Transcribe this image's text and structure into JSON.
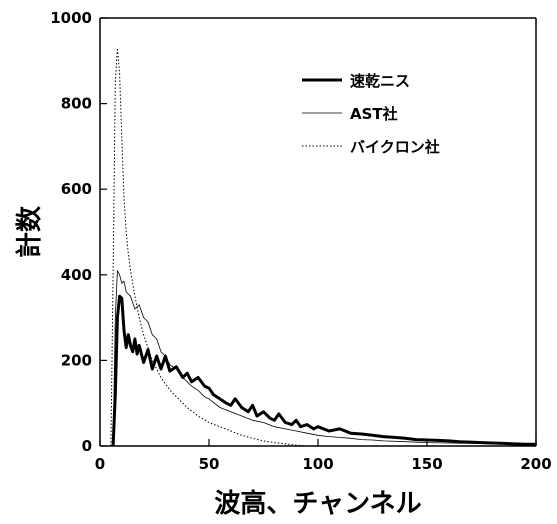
{
  "chart_data": {
    "type": "line",
    "title": "",
    "xlabel": "波高、チャンネル",
    "ylabel": "計数",
    "xlim": [
      0,
      200
    ],
    "ylim": [
      0,
      1000
    ],
    "xticks": [
      0,
      50,
      100,
      150,
      200
    ],
    "yticks": [
      0,
      200,
      400,
      600,
      800,
      1000
    ],
    "legend": "top-right",
    "grid": false,
    "series": [
      {
        "name": "速乾ニス",
        "style": "thick-solid",
        "color": "#000000",
        "x": [
          6,
          7,
          8,
          9,
          10,
          11,
          12,
          13,
          14,
          15,
          16,
          17,
          18,
          20,
          22,
          24,
          26,
          28,
          30,
          32,
          35,
          38,
          40,
          42,
          45,
          48,
          50,
          52,
          55,
          58,
          60,
          62,
          65,
          68,
          70,
          72,
          75,
          78,
          80,
          82,
          85,
          88,
          90,
          92,
          95,
          98,
          100,
          105,
          110,
          115,
          120,
          125,
          130,
          135,
          140,
          145,
          150,
          155,
          160,
          165,
          170,
          175,
          180,
          185,
          190,
          195,
          200
        ],
        "y": [
          0,
          120,
          300,
          350,
          345,
          270,
          230,
          260,
          235,
          220,
          250,
          215,
          235,
          195,
          225,
          180,
          210,
          180,
          210,
          175,
          185,
          160,
          170,
          150,
          160,
          140,
          135,
          120,
          110,
          100,
          95,
          110,
          90,
          80,
          95,
          70,
          80,
          65,
          60,
          75,
          55,
          50,
          60,
          45,
          50,
          40,
          45,
          35,
          40,
          30,
          28,
          25,
          22,
          20,
          18,
          15,
          14,
          13,
          12,
          10,
          9,
          8,
          7,
          6,
          5,
          4,
          4
        ]
      },
      {
        "name": "AST社",
        "style": "thin-solid",
        "color": "#000000",
        "x": [
          6,
          7,
          8,
          9,
          10,
          11,
          12,
          14,
          16,
          18,
          20,
          22,
          24,
          26,
          28,
          30,
          32,
          35,
          38,
          40,
          42,
          45,
          48,
          50,
          55,
          60,
          65,
          70,
          75,
          80,
          85,
          90,
          95,
          100,
          105,
          110,
          115,
          120,
          125,
          130,
          140,
          150,
          160,
          170,
          180,
          190,
          200
        ],
        "y": [
          0,
          300,
          410,
          400,
          380,
          385,
          360,
          350,
          320,
          330,
          300,
          290,
          260,
          250,
          220,
          210,
          190,
          180,
          160,
          150,
          140,
          130,
          115,
          110,
          90,
          80,
          70,
          60,
          55,
          45,
          40,
          35,
          30,
          25,
          22,
          20,
          18,
          15,
          14,
          12,
          10,
          8,
          7,
          6,
          5,
          4,
          3
        ]
      },
      {
        "name": "バイクロン社",
        "style": "dotted",
        "color": "#000000",
        "x": [
          5,
          6,
          7,
          8,
          9,
          10,
          11,
          12,
          13,
          14,
          15,
          16,
          18,
          20,
          22,
          24,
          26,
          28,
          30,
          33,
          36,
          40,
          45,
          50,
          55,
          60,
          65,
          70,
          75,
          80,
          85,
          90,
          95
        ],
        "y": [
          0,
          400,
          850,
          930,
          870,
          720,
          580,
          500,
          450,
          410,
          380,
          350,
          300,
          260,
          230,
          200,
          180,
          160,
          145,
          125,
          110,
          90,
          70,
          55,
          45,
          35,
          25,
          18,
          12,
          8,
          5,
          2,
          0
        ]
      }
    ]
  }
}
